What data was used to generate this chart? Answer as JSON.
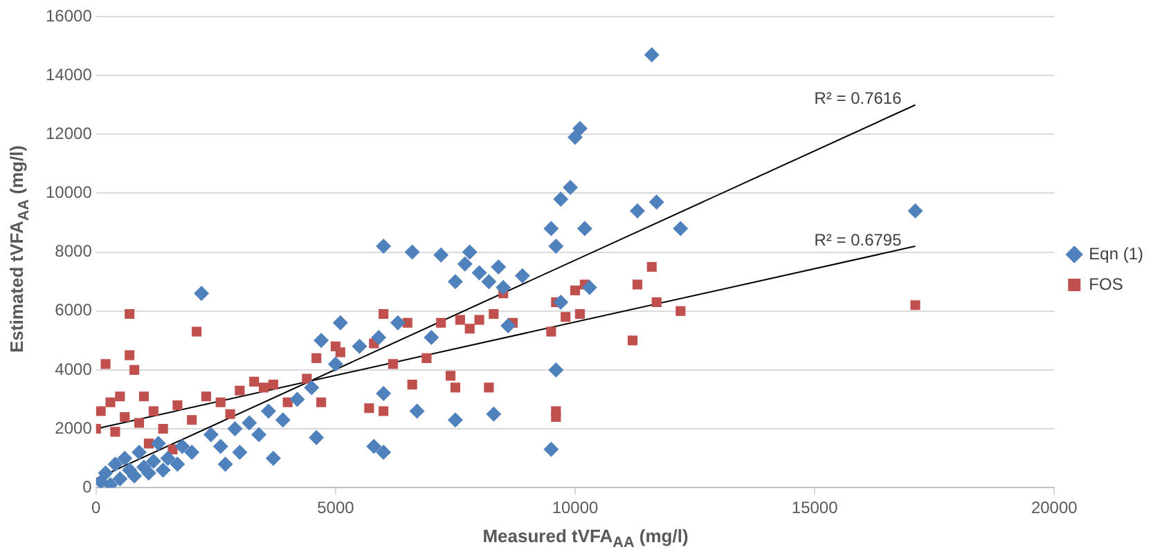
{
  "chart_data": {
    "type": "scatter",
    "xlabel": "Measured tVFA$_{AA}$ (mg/l)",
    "ylabel": "Estimated tVFA$_{AA}$ (mg/l)",
    "xlim": [
      0,
      20000
    ],
    "xticks": [
      0,
      5000,
      10000,
      15000,
      20000
    ],
    "ylim": [
      0,
      16000
    ],
    "yticks": [
      0,
      2000,
      4000,
      6000,
      8000,
      10000,
      12000,
      14000,
      16000
    ],
    "grid": "y",
    "legend": "right",
    "annotations": [
      "R² = 0.7616",
      "R² = 0.6795"
    ],
    "series": [
      {
        "name": "Eqn (1)",
        "color": "#4f81bd",
        "marker": "diamond",
        "x": [
          100,
          200,
          300,
          400,
          500,
          600,
          700,
          800,
          900,
          1000,
          1100,
          1200,
          1300,
          1400,
          1500,
          1700,
          1800,
          2000,
          2200,
          2400,
          2600,
          2700,
          2900,
          3000,
          3200,
          3400,
          3600,
          3700,
          3900,
          4200,
          4500,
          4600,
          4700,
          5000,
          5100,
          5500,
          5800,
          5900,
          6000,
          6000,
          6000,
          6700,
          6600,
          7200,
          7500,
          7500,
          7700,
          7800,
          8000,
          8200,
          8300,
          8400,
          8500,
          8900,
          9500,
          9500,
          9600,
          9600,
          9700,
          9900,
          10000,
          10100,
          10200,
          11300,
          11600,
          11700,
          12200,
          17100,
          6300,
          7000,
          8600,
          9700,
          10300
        ],
        "values": [
          200,
          500,
          100,
          800,
          300,
          1000,
          600,
          400,
          1200,
          700,
          500,
          900,
          1500,
          600,
          1000,
          800,
          1400,
          1200,
          6600,
          1800,
          1400,
          800,
          2000,
          1200,
          2200,
          1800,
          2600,
          1000,
          2300,
          3000,
          3400,
          1700,
          5000,
          4200,
          5600,
          4800,
          1400,
          5100,
          1200,
          8200,
          3200,
          2600,
          8000,
          7900,
          2300,
          7000,
          7600,
          8000,
          7300,
          7000,
          2500,
          7500,
          6800,
          7200,
          8800,
          1300,
          4000,
          8200,
          9800,
          10200,
          11900,
          12200,
          8800,
          9400,
          14700,
          9700,
          8800,
          9400,
          5600,
          5100,
          5500,
          6300,
          6800
        ]
      },
      {
        "name": "FOS",
        "color": "#c0504d",
        "marker": "square",
        "x": [
          0,
          100,
          200,
          300,
          400,
          500,
          600,
          700,
          700,
          800,
          900,
          1000,
          1100,
          1200,
          1400,
          1600,
          1700,
          2000,
          2100,
          2300,
          2600,
          2800,
          3000,
          3300,
          3500,
          3700,
          4000,
          4400,
          4600,
          4700,
          5000,
          5100,
          5700,
          5800,
          6000,
          6000,
          6200,
          6500,
          6600,
          6900,
          7200,
          7400,
          7500,
          7600,
          7800,
          8000,
          8200,
          8300,
          8500,
          8700,
          9500,
          9600,
          9600,
          9600,
          9800,
          10000,
          10100,
          10200,
          11200,
          11300,
          11600,
          11700,
          12200,
          17100
        ],
        "values": [
          2000,
          2600,
          4200,
          2900,
          1900,
          3100,
          2400,
          5900,
          4500,
          4000,
          2200,
          3100,
          1500,
          2600,
          2000,
          1300,
          2800,
          2300,
          5300,
          3100,
          2900,
          2500,
          3300,
          3600,
          3400,
          3500,
          2900,
          3700,
          4400,
          2900,
          4800,
          4600,
          2700,
          4900,
          2600,
          5900,
          4200,
          5600,
          3500,
          4400,
          5600,
          3800,
          3400,
          5700,
          5400,
          5700,
          3400,
          5900,
          6600,
          5600,
          5300,
          6300,
          2600,
          2400,
          5800,
          6700,
          5900,
          6900,
          5000,
          6900,
          7500,
          6300,
          6000,
          6200
        ]
      },
      {
        "type": "line",
        "color": "#000000",
        "marker": "none",
        "x": [
          0,
          17100
        ],
        "values": [
          300,
          13000
        ]
      },
      {
        "type": "line",
        "color": "#000000",
        "marker": "none",
        "x": [
          0,
          17100
        ],
        "values": [
          2000,
          8200
        ]
      }
    ]
  }
}
